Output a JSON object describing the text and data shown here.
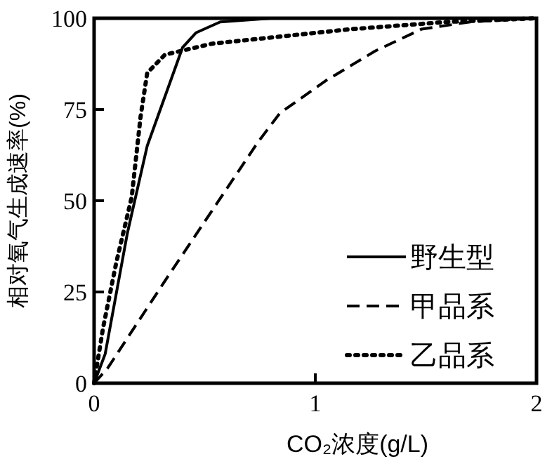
{
  "chart_data": {
    "type": "line",
    "xlabel": "CO₂浓度(g/L)",
    "ylabel": "相对氧气生成速率(%)",
    "xlim": [
      0,
      2
    ],
    "ylim": [
      0,
      100
    ],
    "xticks": [
      0,
      1,
      2
    ],
    "yticks": [
      0,
      25,
      50,
      75,
      100
    ],
    "grid": false,
    "legend": "bottom right",
    "series": [
      {
        "name": "野生型",
        "color": "#000000",
        "line_style": "solid",
        "x": [
          0,
          0.05,
          0.15,
          0.24,
          0.4,
          0.46,
          0.57,
          0.8,
          1.2,
          2
        ],
        "values": [
          0,
          8,
          41,
          65,
          92,
          96,
          99,
          100,
          100,
          100
        ]
      },
      {
        "name": "甲品系",
        "color": "#000000",
        "line_style": "dashed",
        "x": [
          0,
          0.06,
          0.32,
          0.53,
          0.74,
          0.84,
          1.05,
          1.27,
          1.48,
          1.7,
          2
        ],
        "values": [
          0,
          4,
          28,
          47,
          66,
          74,
          83,
          91,
          97,
          99,
          100
        ]
      },
      {
        "name": "乙品系",
        "color": "#000000",
        "line_style": "dotted",
        "x": [
          0,
          0.04,
          0.1,
          0.17,
          0.21,
          0.24,
          0.32,
          0.53,
          1.16,
          1.6,
          2
        ],
        "values": [
          0,
          15,
          33,
          51,
          73,
          85,
          90,
          93,
          97,
          99,
          100
        ]
      }
    ]
  }
}
